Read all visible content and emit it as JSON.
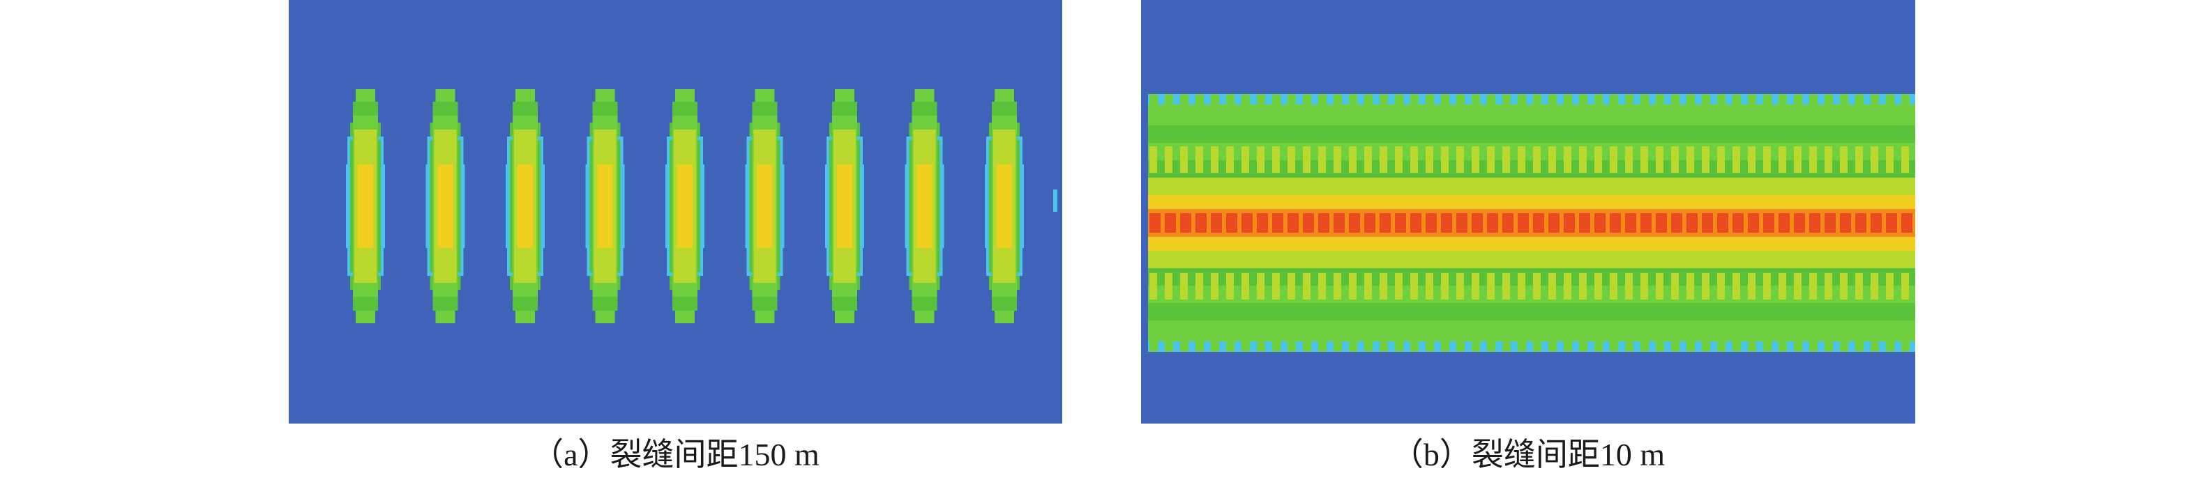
{
  "colors": {
    "background_field": "#3f63b8",
    "contour_cyan": "#4cc3e8",
    "contour_light_green": "#6fcf3e",
    "contour_green": "#59c23a",
    "contour_yellow_green": "#b9d92e",
    "contour_yellow": "#f0cf20",
    "contour_orange": "#f38a1a",
    "contour_red": "#ea4a1f"
  },
  "panels": [
    {
      "id": "a",
      "caption": "（a）裂缝间距150 m",
      "fracture_count": 9,
      "pattern": "isolated-ellipses"
    },
    {
      "id": "b",
      "caption": "（b）裂缝间距10 m",
      "pattern": "continuous-band"
    }
  ]
}
